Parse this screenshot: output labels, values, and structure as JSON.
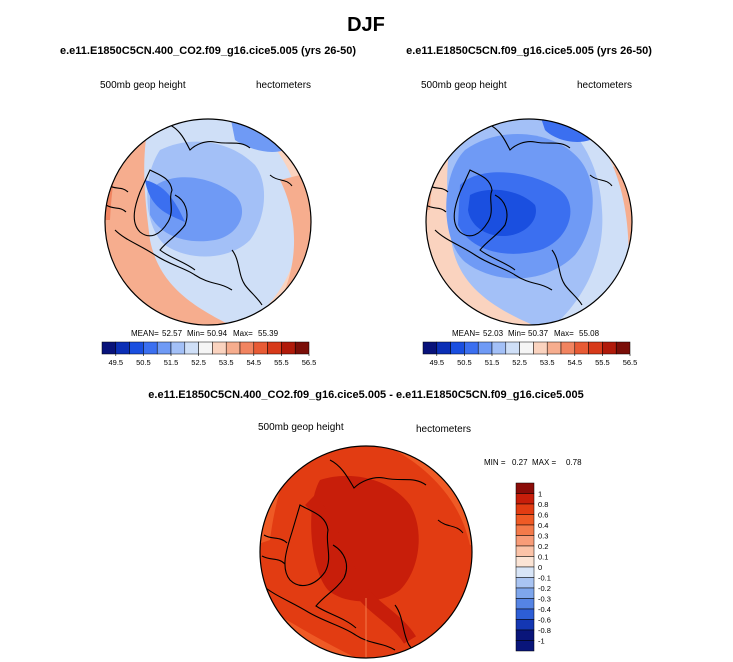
{
  "chart_data": [
    {
      "type": "heatmap",
      "projection": "north-polar-stereographic",
      "figure_title": "DJF",
      "title": "e.e11.E1850C5CN.400_CO2.f09_g16.cice5.005 (yrs 26-50)",
      "left_label": "500mb geop height",
      "right_label": "hectometers",
      "stats": {
        "mean_label": "MEAN=",
        "mean": "52.57",
        "min_label": "Min=",
        "min": "50.94",
        "max_label": "Max=",
        "max": "55.39"
      },
      "colorbar_ticks": [
        "49.5",
        "50.5",
        "51.5",
        "52.5",
        "53.5",
        "54.5",
        "55.5",
        "56.5"
      ],
      "colorbar_colors": [
        "#08127a",
        "#0b2fb6",
        "#1a4fe0",
        "#3b6ff0",
        "#6f9af5",
        "#a3c0f7",
        "#cfdff7",
        "#f5f5f5",
        "#fad3bf",
        "#f6ad8e",
        "#f18460",
        "#e85b35",
        "#d73a1a",
        "#b01a0a",
        "#7a0e08"
      ],
      "colorbar_orientation": "horizontal"
    },
    {
      "type": "heatmap",
      "projection": "north-polar-stereographic",
      "title": "e.e11.E1850C5CN.f09_g16.cice5.005 (yrs 26-50)",
      "left_label": "500mb geop height",
      "right_label": "hectometers",
      "stats": {
        "mean_label": "MEAN=",
        "mean": "52.03",
        "min_label": "Min=",
        "min": "50.37",
        "max_label": "Max=",
        "max": "55.08"
      },
      "colorbar_ticks": [
        "49.5",
        "50.5",
        "51.5",
        "52.5",
        "53.5",
        "54.5",
        "55.5",
        "56.5"
      ],
      "colorbar_orientation": "horizontal"
    },
    {
      "type": "heatmap",
      "projection": "north-polar-stereographic",
      "title": "e.e11.E1850C5CN.400_CO2.f09_g16.cice5.005 - e.e11.E1850C5CN.f09_g16.cice5.005",
      "left_label": "500mb geop height",
      "right_label": "hectometers",
      "stats": {
        "min_label": "MIN =",
        "min": "0.27",
        "max_label": "MAX =",
        "max": "0.78"
      },
      "colorbar_ticks": [
        "1",
        "0.8",
        "0.6",
        "0.4",
        "0.3",
        "0.2",
        "0.1",
        "0",
        "-0.1",
        "-0.2",
        "-0.3",
        "-0.4",
        "-0.6",
        "-0.8",
        "-1"
      ],
      "colorbar_colors": [
        "#8b0c08",
        "#c81e0a",
        "#e23c12",
        "#ef5a25",
        "#f47a4a",
        "#f89c78",
        "#fbc3a8",
        "#fbe4d5",
        "#d8e5f7",
        "#a9c4f2",
        "#7ea6ec",
        "#5584e4",
        "#2d5ed6",
        "#1437b3",
        "#09157a"
      ],
      "colorbar_orientation": "vertical"
    }
  ]
}
